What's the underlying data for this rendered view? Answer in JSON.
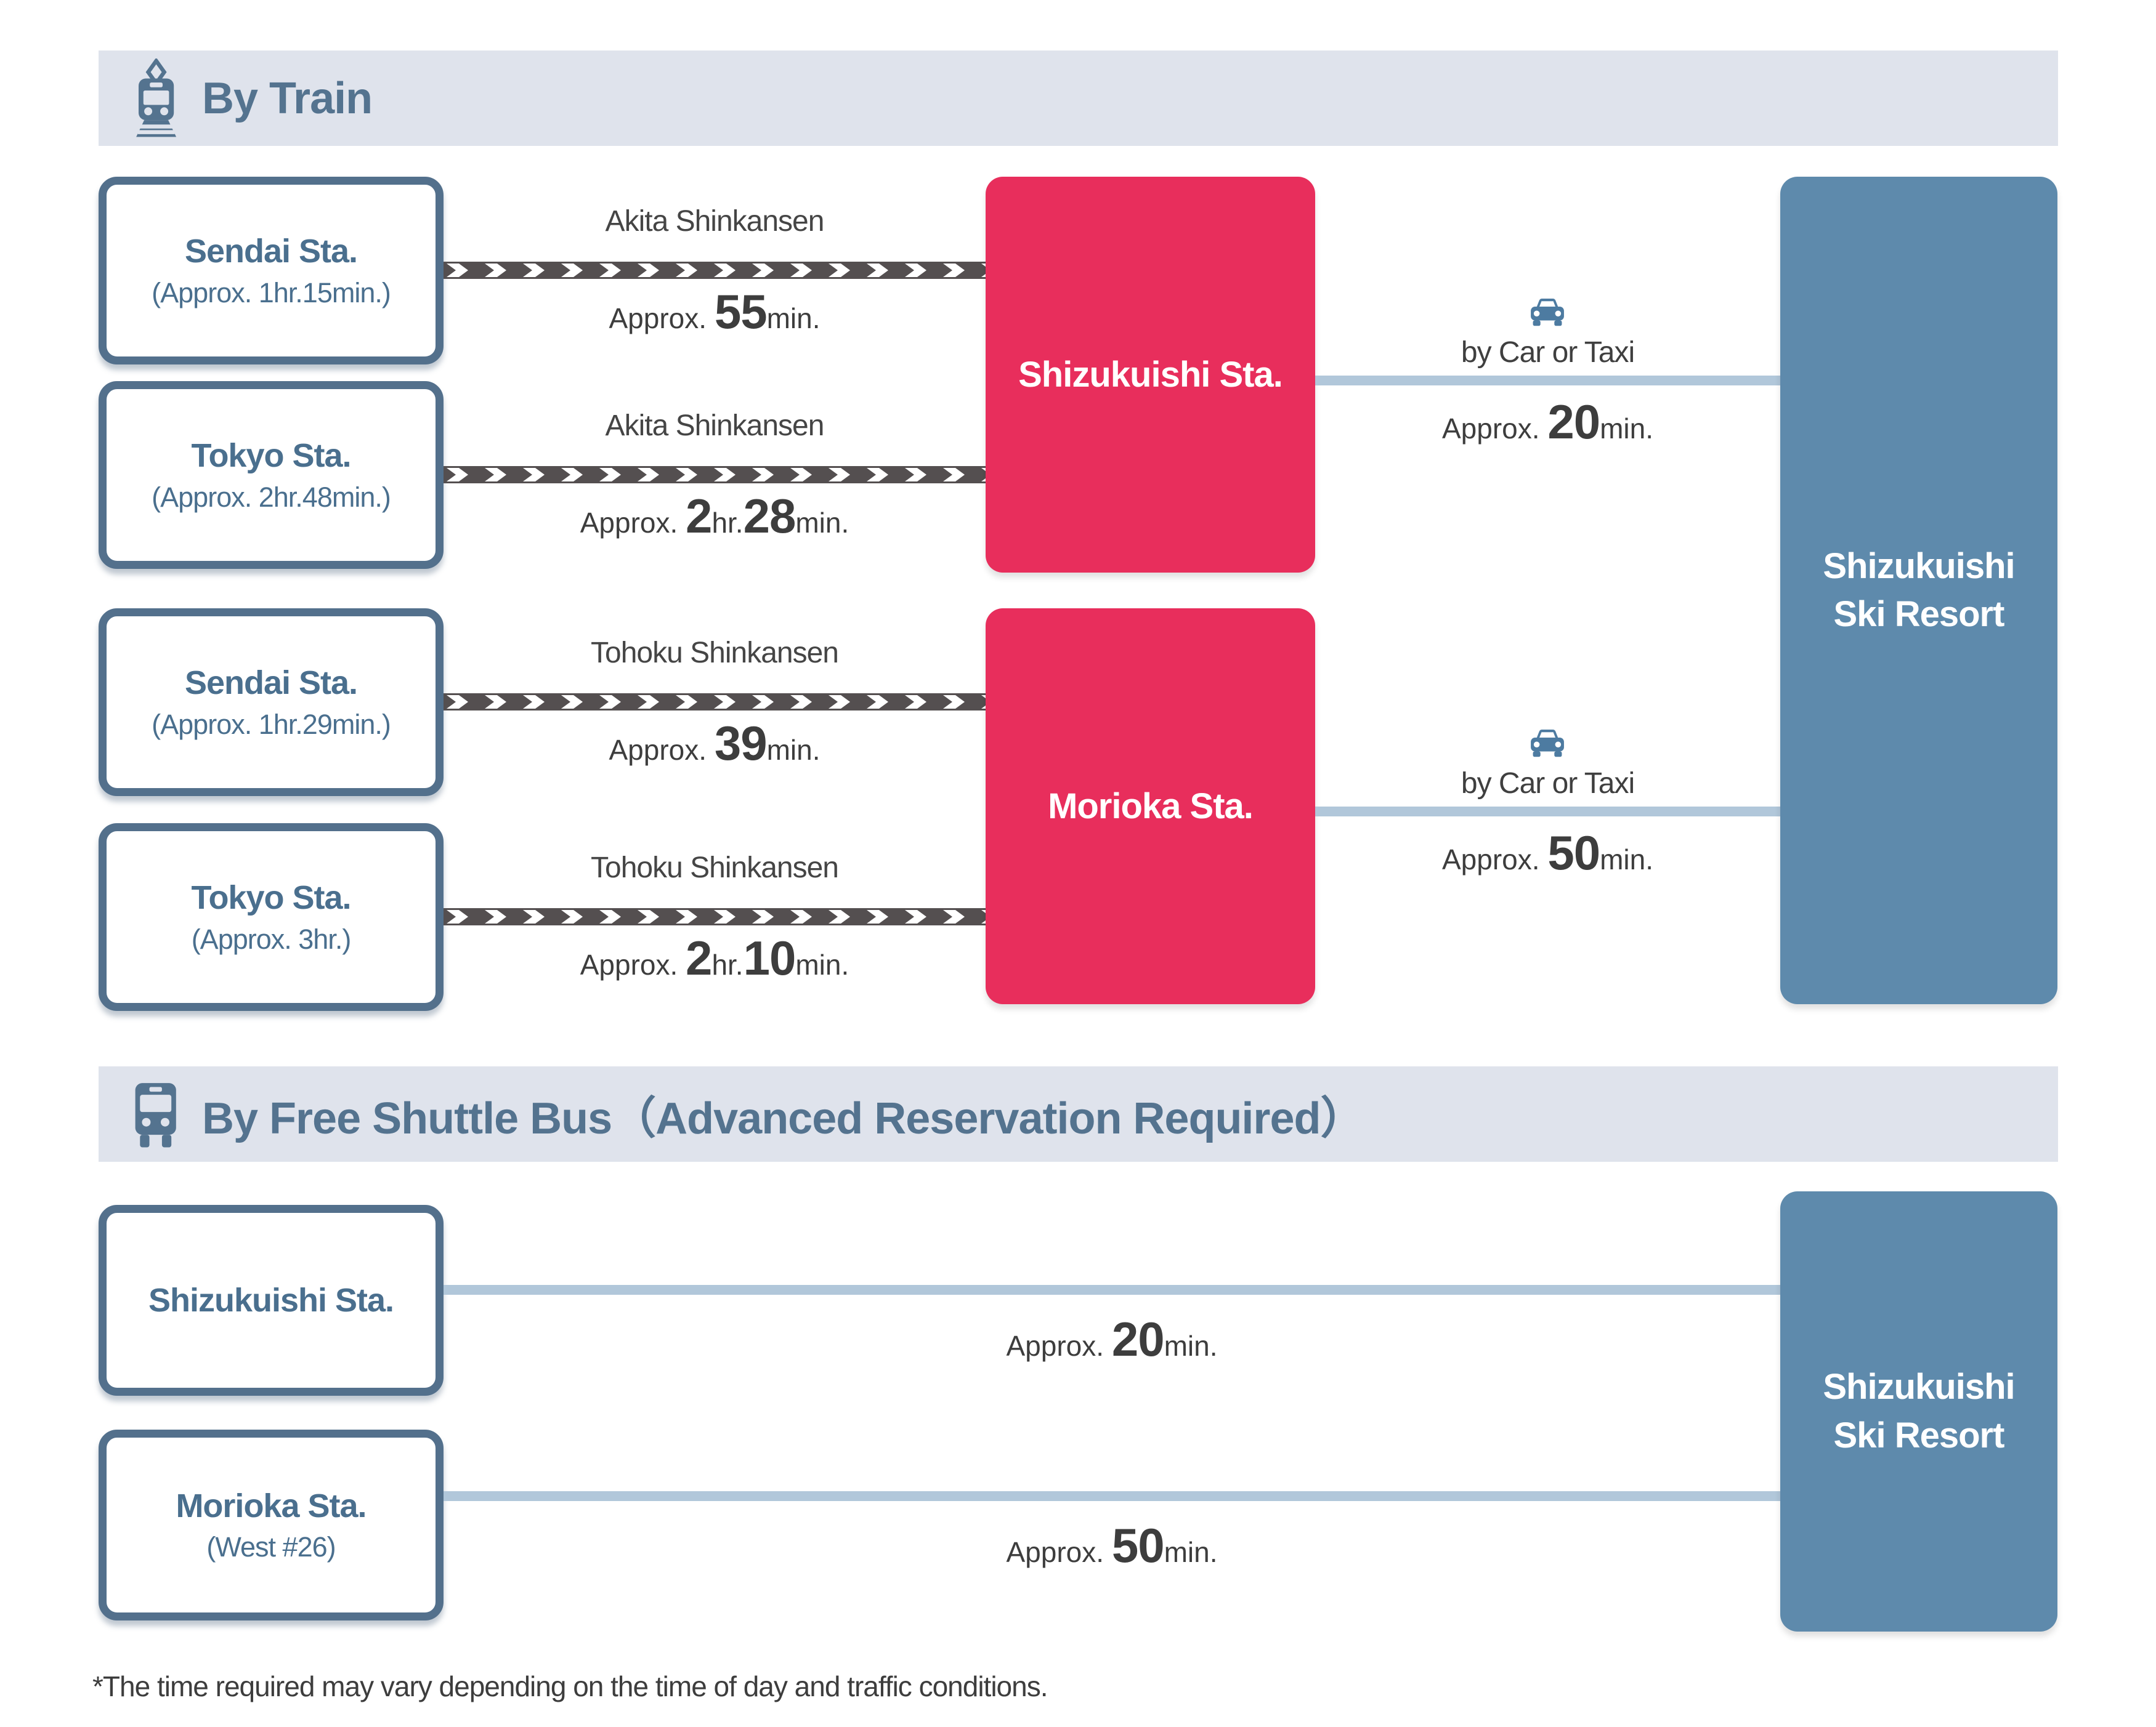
{
  "colors": {
    "accent_pink": "#e82e5c",
    "steel_blue": "#5e8aac",
    "slate": "#54738f",
    "header_bg": "#dfe3ec",
    "connector_blue": "#b1c7da",
    "arrow_band_gray": "#544f50"
  },
  "train": {
    "title": "By Train",
    "rows": [
      {
        "name": "Sendai Sta.",
        "note": "(Approx. 1hr.15min.)",
        "line": "Akita Shinkansen",
        "time": [
          {
            "t": "Approx. ",
            "b": 0
          },
          {
            "t": "55",
            "b": 1
          },
          {
            "t": "min.",
            "b": 0
          }
        ]
      },
      {
        "name": "Tokyo Sta.",
        "note": "(Approx. 2hr.48min.)",
        "line": "Akita Shinkansen",
        "time": [
          {
            "t": "Approx. ",
            "b": 0
          },
          {
            "t": "2",
            "b": 1
          },
          {
            "t": "hr.",
            "b": 0
          },
          {
            "t": "28",
            "b": 1
          },
          {
            "t": "min.",
            "b": 0
          }
        ]
      },
      {
        "name": "Sendai Sta.",
        "note": "(Approx. 1hr.29min.)",
        "line": "Tohoku Shinkansen",
        "time": [
          {
            "t": "Approx. ",
            "b": 0
          },
          {
            "t": "39",
            "b": 1
          },
          {
            "t": "min.",
            "b": 0
          }
        ]
      },
      {
        "name": "Tokyo Sta.",
        "note": "(Approx. 3hr.)",
        "line": "Tohoku Shinkansen",
        "time": [
          {
            "t": "Approx. ",
            "b": 0
          },
          {
            "t": "2",
            "b": 1
          },
          {
            "t": "hr.",
            "b": 0
          },
          {
            "t": "10",
            "b": 1
          },
          {
            "t": "min.",
            "b": 0
          }
        ]
      }
    ],
    "hubs": [
      {
        "name": "Shizukuishi Sta.",
        "transfer_label": "by Car or Taxi",
        "time": [
          {
            "t": "Approx. ",
            "b": 0
          },
          {
            "t": "20",
            "b": 1
          },
          {
            "t": "min.",
            "b": 0
          }
        ]
      },
      {
        "name": "Morioka Sta.",
        "transfer_label": "by Car or Taxi",
        "time": [
          {
            "t": "Approx. ",
            "b": 0
          },
          {
            "t": "50",
            "b": 1
          },
          {
            "t": "min.",
            "b": 0
          }
        ]
      }
    ],
    "dest_line1": "Shizukuishi",
    "dest_line2": "Ski Resort"
  },
  "bus": {
    "title": "By Free Shuttle Bus（Advanced Reservation Required）",
    "stops": [
      {
        "name": "Shizukuishi Sta.",
        "note": "",
        "time": [
          {
            "t": "Approx. ",
            "b": 0
          },
          {
            "t": "20",
            "b": 1
          },
          {
            "t": "min.",
            "b": 0
          }
        ]
      },
      {
        "name": "Morioka Sta.",
        "note": "(West #26)",
        "time": [
          {
            "t": "Approx. ",
            "b": 0
          },
          {
            "t": "50",
            "b": 1
          },
          {
            "t": "min.",
            "b": 0
          }
        ]
      }
    ],
    "dest_line1": "Shizukuishi",
    "dest_line2": "Ski Resort"
  },
  "footnote": "*The time required may vary depending on the time of day and traffic conditions."
}
